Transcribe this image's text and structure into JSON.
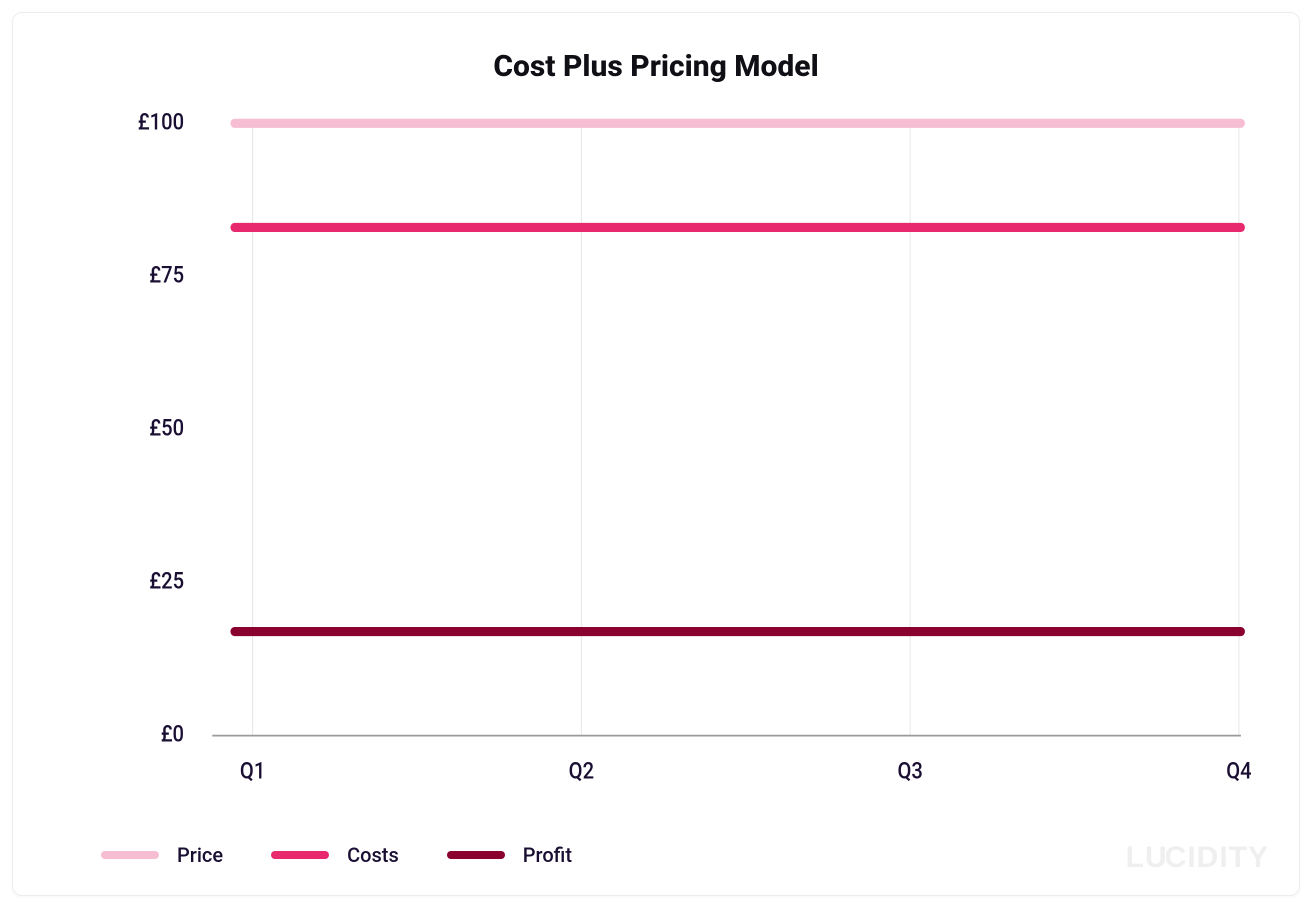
{
  "chart": {
    "type": "line",
    "title": "Cost Plus Pricing Model",
    "title_fontsize": 30,
    "title_fontweight": 800,
    "title_color": "#0f0f15",
    "background_color": "#ffffff",
    "card_border_color": "#ececec",
    "axis_color": "#9a9a9a",
    "grid_color": "#e6e6e6",
    "tick_label_color": "#1a0f33",
    "tick_label_fontsize": 20,
    "currency_prefix": "£",
    "ylim": [
      0,
      100
    ],
    "ytick_step": 25,
    "yticks": [
      {
        "value": 0,
        "label": "£0"
      },
      {
        "value": 25,
        "label": "£25"
      },
      {
        "value": 50,
        "label": "£50"
      },
      {
        "value": 75,
        "label": "£75"
      },
      {
        "value": 100,
        "label": "£100"
      }
    ],
    "categories": [
      "Q1",
      "Q2",
      "Q3",
      "Q4"
    ],
    "series": [
      {
        "name": "Price",
        "color": "#f6bdd3",
        "line_width": 8,
        "values": [
          100,
          100,
          100,
          100
        ]
      },
      {
        "name": "Costs",
        "color": "#e9296e",
        "line_width": 8,
        "values": [
          83,
          83,
          83,
          83
        ]
      },
      {
        "name": "Profit",
        "color": "#8a002e",
        "line_width": 8,
        "values": [
          17,
          17,
          17,
          17
        ]
      }
    ],
    "legend": {
      "position": "bottom-left",
      "swatch_width": 58,
      "swatch_height": 8,
      "label_fontsize": 20
    },
    "brand": "LUCIDITY",
    "brand_color": "#efefef"
  }
}
